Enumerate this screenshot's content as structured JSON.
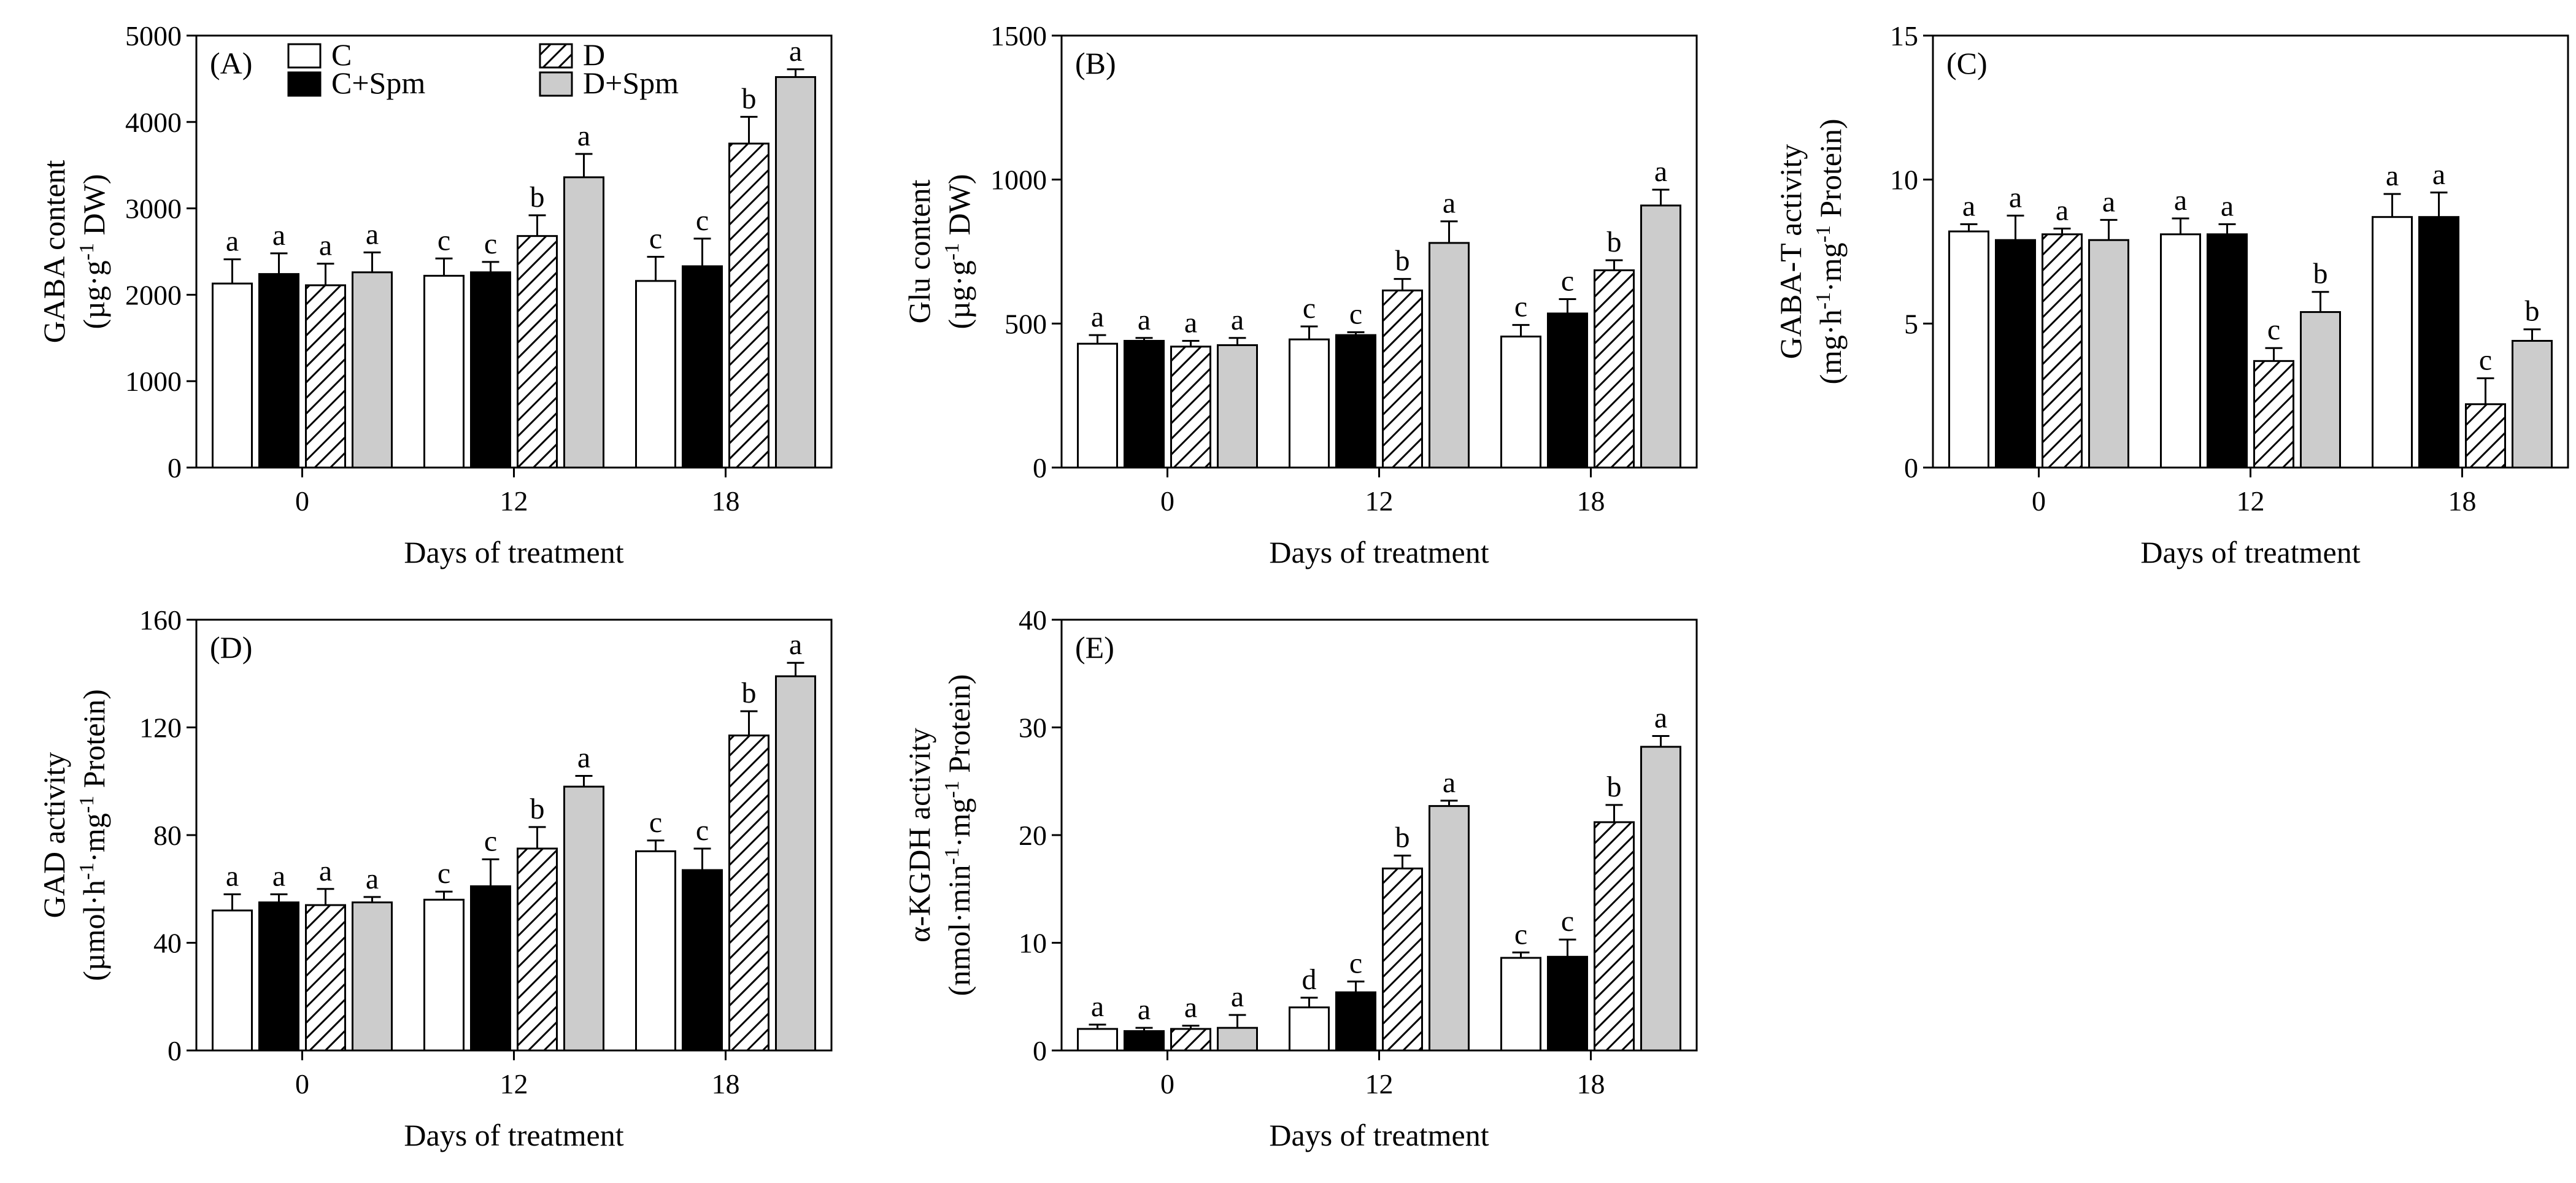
{
  "legend": [
    {
      "key": "C",
      "label": "C"
    },
    {
      "key": "CS",
      "label": "C+Spm"
    },
    {
      "key": "D",
      "label": "D"
    },
    {
      "key": "DS",
      "label": "D+Spm"
    }
  ],
  "colors": {
    "C": "#ffffff",
    "CS": "#000000",
    "D": "hatch",
    "DS": "#cccccc",
    "outline": "#000000"
  },
  "chart_data": [
    {
      "type": "bar",
      "panel": "(A)",
      "categories": [
        "0",
        "12",
        "18"
      ],
      "xlabel": "Days of treatment",
      "ylabel_line1": "GABA content",
      "ylabel_line2": "(µg·g-1 DW)",
      "ylim": [
        0,
        5000
      ],
      "yticks": [
        0,
        1000,
        2000,
        3000,
        4000,
        5000
      ],
      "series": [
        {
          "key": "C",
          "values": [
            2130,
            2220,
            2160
          ],
          "errors": [
            280,
            200,
            280
          ],
          "letters": [
            "a",
            "c",
            "c"
          ]
        },
        {
          "key": "CS",
          "values": [
            2240,
            2260,
            2330
          ],
          "errors": [
            240,
            120,
            320
          ],
          "letters": [
            "a",
            "c",
            "c"
          ]
        },
        {
          "key": "D",
          "values": [
            2110,
            2680,
            3750
          ],
          "errors": [
            250,
            240,
            310
          ],
          "letters": [
            "a",
            "b",
            "b"
          ]
        },
        {
          "key": "DS",
          "values": [
            2260,
            3360,
            4520
          ],
          "errors": [
            230,
            270,
            90
          ],
          "letters": [
            "a",
            "a",
            "a"
          ]
        }
      ]
    },
    {
      "type": "bar",
      "panel": "(B)",
      "categories": [
        "0",
        "12",
        "18"
      ],
      "xlabel": "Days of treatment",
      "ylabel_line1": "Glu content",
      "ylabel_line2": "(µg·g-1 DW)",
      "ylim": [
        0,
        1500
      ],
      "yticks": [
        0,
        500,
        1000,
        1500
      ],
      "series": [
        {
          "key": "C",
          "values": [
            430,
            445,
            455
          ],
          "errors": [
            30,
            45,
            40
          ],
          "letters": [
            "a",
            "c",
            "c"
          ]
        },
        {
          "key": "CS",
          "values": [
            440,
            460,
            535
          ],
          "errors": [
            10,
            10,
            50
          ],
          "letters": [
            "a",
            "c",
            "c"
          ]
        },
        {
          "key": "D",
          "values": [
            420,
            615,
            685
          ],
          "errors": [
            20,
            40,
            35
          ],
          "letters": [
            "a",
            "b",
            "b"
          ]
        },
        {
          "key": "DS",
          "values": [
            425,
            780,
            910
          ],
          "errors": [
            25,
            75,
            55
          ],
          "letters": [
            "a",
            "a",
            "a"
          ]
        }
      ]
    },
    {
      "type": "bar",
      "panel": "(C)",
      "categories": [
        "0",
        "12",
        "18"
      ],
      "xlabel": "Days of treatment",
      "ylabel_line1": "GABA-T activity",
      "ylabel_line2": "(mg·h-1·mg-1 Protein)",
      "ylim": [
        0,
        15
      ],
      "yticks": [
        0,
        5,
        10,
        15
      ],
      "series": [
        {
          "key": "C",
          "values": [
            8.2,
            8.1,
            8.7
          ],
          "errors": [
            0.25,
            0.55,
            0.8
          ],
          "letters": [
            "a",
            "a",
            "a"
          ]
        },
        {
          "key": "CS",
          "values": [
            7.9,
            8.1,
            8.7
          ],
          "errors": [
            0.85,
            0.35,
            0.85
          ],
          "letters": [
            "a",
            "a",
            "a"
          ]
        },
        {
          "key": "D",
          "values": [
            8.1,
            3.7,
            2.2
          ],
          "errors": [
            0.2,
            0.45,
            0.9
          ],
          "letters": [
            "a",
            "c",
            "c"
          ]
        },
        {
          "key": "DS",
          "values": [
            7.9,
            5.4,
            4.4
          ],
          "errors": [
            0.7,
            0.7,
            0.4
          ],
          "letters": [
            "a",
            "b",
            "b"
          ]
        }
      ]
    },
    {
      "type": "bar",
      "panel": "(D)",
      "categories": [
        "0",
        "12",
        "18"
      ],
      "xlabel": "Days of treatment",
      "ylabel_line1": "GAD activity",
      "ylabel_line2": "(µmol·h-1·mg-1 Protein)",
      "ylim": [
        0,
        160
      ],
      "yticks": [
        0,
        40,
        80,
        120,
        160
      ],
      "series": [
        {
          "key": "C",
          "values": [
            52,
            56,
            74
          ],
          "errors": [
            6,
            3,
            4
          ],
          "letters": [
            "a",
            "c",
            "c"
          ]
        },
        {
          "key": "CS",
          "values": [
            55,
            61,
            67
          ],
          "errors": [
            3,
            10,
            8
          ],
          "letters": [
            "a",
            "c",
            "c"
          ]
        },
        {
          "key": "D",
          "values": [
            54,
            75,
            117
          ],
          "errors": [
            6,
            8,
            9
          ],
          "letters": [
            "a",
            "b",
            "b"
          ]
        },
        {
          "key": "DS",
          "values": [
            55,
            98,
            139
          ],
          "errors": [
            2,
            4,
            5
          ],
          "letters": [
            "a",
            "a",
            "a"
          ]
        }
      ]
    },
    {
      "type": "bar",
      "panel": "(E)",
      "categories": [
        "0",
        "12",
        "18"
      ],
      "xlabel": "Days of treatment",
      "ylabel_line1": "α-KGDH activity",
      "ylabel_line2": "(nmol·min-1·mg-1 Protein)",
      "ylim": [
        0,
        40
      ],
      "yticks": [
        0,
        10,
        20,
        30,
        40
      ],
      "series": [
        {
          "key": "C",
          "values": [
            2.0,
            4.0,
            8.6
          ],
          "errors": [
            0.4,
            0.9,
            0.5
          ],
          "letters": [
            "a",
            "d",
            "c"
          ]
        },
        {
          "key": "CS",
          "values": [
            1.8,
            5.4,
            8.7
          ],
          "errors": [
            0.3,
            1.0,
            1.6
          ],
          "letters": [
            "a",
            "c",
            "c"
          ]
        },
        {
          "key": "D",
          "values": [
            2.0,
            16.9,
            21.2
          ],
          "errors": [
            0.3,
            1.2,
            1.6
          ],
          "letters": [
            "a",
            "b",
            "b"
          ]
        },
        {
          "key": "DS",
          "values": [
            2.1,
            22.7,
            28.2
          ],
          "errors": [
            1.2,
            0.5,
            1.0
          ],
          "letters": [
            "a",
            "a",
            "a"
          ]
        }
      ]
    }
  ]
}
